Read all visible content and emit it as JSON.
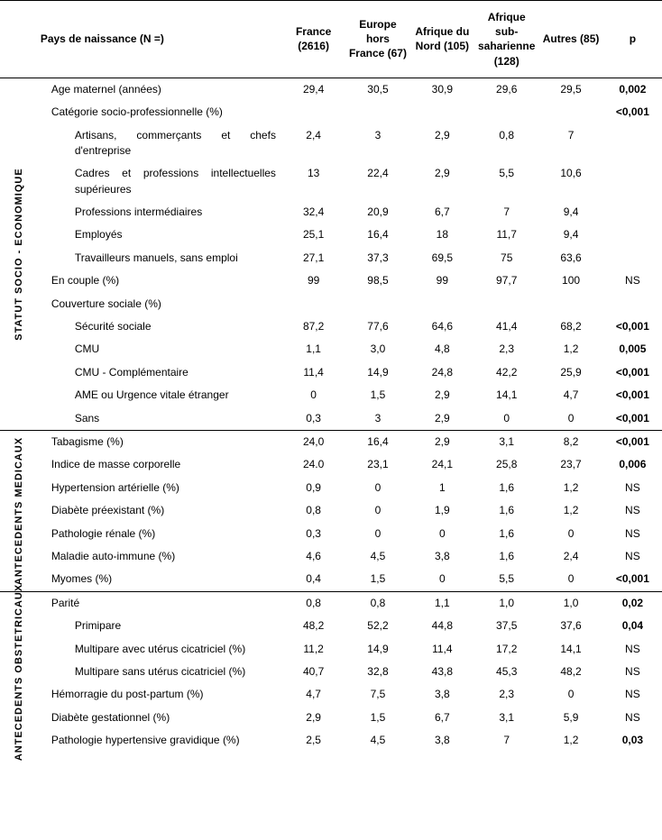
{
  "header": {
    "row_header": "Pays de naissance (N =)",
    "cols": [
      "France (2616)",
      "Europe hors France (67)",
      "Afrique du Nord (105)",
      "Afrique sub-saharienne (128)",
      "Autres (85)"
    ],
    "p_label": "p"
  },
  "sections": [
    {
      "label": "STATUT SOCIO - ECONOMIQUE",
      "rows": [
        {
          "indent": 1,
          "label": "Age maternel (années)",
          "vals": [
            "29,4",
            "30,5",
            "30,9",
            "29,6",
            "29,5"
          ],
          "p": "0,002",
          "p_bold": true
        },
        {
          "indent": 1,
          "label": "Catégorie socio-professionnelle (%)",
          "vals": [
            "",
            "",
            "",
            "",
            ""
          ],
          "p": "<0,001",
          "p_bold": true
        },
        {
          "indent": 2,
          "label": "Artisans, commerçants et chefs d'entreprise",
          "vals": [
            "2,4",
            "3",
            "2,9",
            "0,8",
            "7"
          ],
          "p": ""
        },
        {
          "indent": 2,
          "label": "Cadres et professions intellectuelles supérieures",
          "vals": [
            "13",
            "22,4",
            "2,9",
            "5,5",
            "10,6"
          ],
          "p": ""
        },
        {
          "indent": 2,
          "label": "Professions intermédiaires",
          "vals": [
            "32,4",
            "20,9",
            "6,7",
            "7",
            "9,4"
          ],
          "p": ""
        },
        {
          "indent": 2,
          "label": "Employés",
          "vals": [
            "25,1",
            "16,4",
            "18",
            "11,7",
            "9,4"
          ],
          "p": ""
        },
        {
          "indent": 2,
          "label": "Travailleurs manuels, sans emploi",
          "vals": [
            "27,1",
            "37,3",
            "69,5",
            "75",
            "63,6"
          ],
          "p": ""
        },
        {
          "indent": 1,
          "label": "En couple (%)",
          "vals": [
            "99",
            "98,5",
            "99",
            "97,7",
            "100"
          ],
          "p": "NS"
        },
        {
          "indent": 1,
          "label": "Couverture sociale (%)",
          "vals": [
            "",
            "",
            "",
            "",
            ""
          ],
          "p": ""
        },
        {
          "indent": 2,
          "label": "Sécurité sociale",
          "vals": [
            "87,2",
            "77,6",
            "64,6",
            "41,4",
            "68,2"
          ],
          "p": "<0,001",
          "p_bold": true
        },
        {
          "indent": 2,
          "label": "CMU",
          "vals": [
            "1,1",
            "3,0",
            "4,8",
            "2,3",
            "1,2"
          ],
          "p": "0,005",
          "p_bold": true
        },
        {
          "indent": 2,
          "label": "CMU - Complémentaire",
          "vals": [
            "11,4",
            "14,9",
            "24,8",
            "42,2",
            "25,9"
          ],
          "p": "<0,001",
          "p_bold": true
        },
        {
          "indent": 2,
          "label": "AME ou Urgence vitale étranger",
          "vals": [
            "0",
            "1,5",
            "2,9",
            "14,1",
            "4,7"
          ],
          "p": "<0,001",
          "p_bold": true
        },
        {
          "indent": 2,
          "label": "Sans",
          "vals": [
            "0,3",
            "3",
            "2,9",
            "0",
            "0"
          ],
          "p": "<0,001",
          "p_bold": true
        }
      ]
    },
    {
      "label": "ANTECEDENTS MEDICAUX",
      "rows": [
        {
          "indent": 1,
          "label": "Tabagisme (%)",
          "vals": [
            "24,0",
            "16,4",
            "2,9",
            "3,1",
            "8,2"
          ],
          "p": "<0,001",
          "p_bold": true
        },
        {
          "indent": 1,
          "label": "Indice de masse corporelle",
          "vals": [
            "24.0",
            "23,1",
            "24,1",
            "25,8",
            "23,7"
          ],
          "p": "0,006",
          "p_bold": true
        },
        {
          "indent": 1,
          "label": "Hypertension artérielle (%)",
          "vals": [
            "0,9",
            "0",
            "1",
            "1,6",
            "1,2"
          ],
          "p": "NS"
        },
        {
          "indent": 1,
          "label": "Diabète préexistant (%)",
          "vals": [
            "0,8",
            "0",
            "1,9",
            "1,6",
            "1,2"
          ],
          "p": "NS"
        },
        {
          "indent": 1,
          "label": "Pathologie rénale (%)",
          "vals": [
            "0,3",
            "0",
            "0",
            "1,6",
            "0"
          ],
          "p": "NS"
        },
        {
          "indent": 1,
          "label": "Maladie auto-immune (%)",
          "vals": [
            "4,6",
            "4,5",
            "3,8",
            "1,6",
            "2,4"
          ],
          "p": "NS"
        },
        {
          "indent": 1,
          "label": "Myomes (%)",
          "vals": [
            "0,4",
            "1,5",
            "0",
            "5,5",
            "0"
          ],
          "p": "<0,001",
          "p_bold": true
        }
      ]
    },
    {
      "label": "ANTECEDENTS OBSTETRICAUX",
      "rows": [
        {
          "indent": 1,
          "label": "Parité",
          "vals": [
            "0,8",
            "0,8",
            "1,1",
            "1,0",
            "1,0"
          ],
          "p": "0,02",
          "p_bold": true
        },
        {
          "indent": 2,
          "label": "Primipare",
          "vals": [
            "48,2",
            "52,2",
            "44,8",
            "37,5",
            "37,6"
          ],
          "p": "0,04",
          "p_bold": true
        },
        {
          "indent": 2,
          "label": "Multipare avec utérus cicatriciel (%)",
          "vals": [
            "11,2",
            "14,9",
            "11,4",
            "17,2",
            "14,1"
          ],
          "p": "NS"
        },
        {
          "indent": 2,
          "label": "Multipare sans utérus cicatriciel (%)",
          "vals": [
            "40,7",
            "32,8",
            "43,8",
            "45,3",
            "48,2"
          ],
          "p": "NS"
        },
        {
          "indent": 1,
          "label": "Hémorragie du post-partum (%)",
          "vals": [
            "4,7",
            "7,5",
            "3,8",
            "2,3",
            "0"
          ],
          "p": "NS"
        },
        {
          "indent": 1,
          "label": "Diabète gestationnel (%)",
          "vals": [
            "2,9",
            "1,5",
            "6,7",
            "3,1",
            "5,9"
          ],
          "p": "NS"
        },
        {
          "indent": 1,
          "label": "Pathologie hypertensive gravidique (%)",
          "vals": [
            "2,5",
            "4,5",
            "3,8",
            "7",
            "1,2"
          ],
          "p": "0,03",
          "p_bold": true
        }
      ]
    }
  ]
}
